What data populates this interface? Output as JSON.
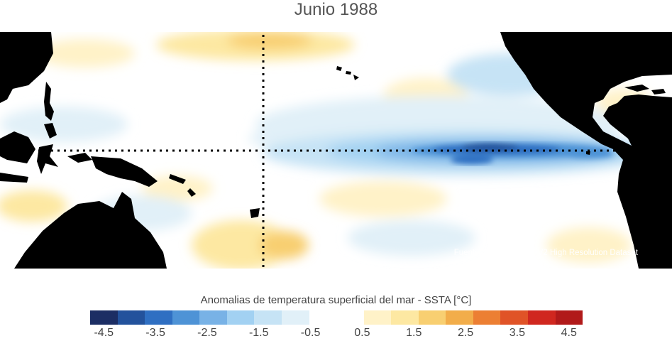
{
  "title": "Junio 1988",
  "source": "Fuente: NOAA OI SST V2 High Resolution Dataset",
  "colorbar": {
    "label": "Anomalias de temperatura superficial del mar - SSTA  [°C]",
    "colors": [
      "#1c2e64",
      "#23529c",
      "#2f6fc2",
      "#4e93d6",
      "#78b2e6",
      "#a2d1f2",
      "#c6e3f5",
      "#e1f0f8",
      "#ffffff",
      "#ffffff",
      "#fff2c8",
      "#fde8a2",
      "#f8cf71",
      "#f2ad4a",
      "#ec7f33",
      "#e05327",
      "#d0271f",
      "#b11a1a"
    ],
    "tick_labels": [
      "-4.5",
      "-3.5",
      "-2.5",
      "-1.5",
      "-0.5",
      "0.5",
      "1.5",
      "2.5",
      "3.5",
      "4.5"
    ]
  },
  "map": {
    "land_color": "#000000",
    "reference_lines": [
      "equator-line",
      "dateline"
    ]
  }
}
